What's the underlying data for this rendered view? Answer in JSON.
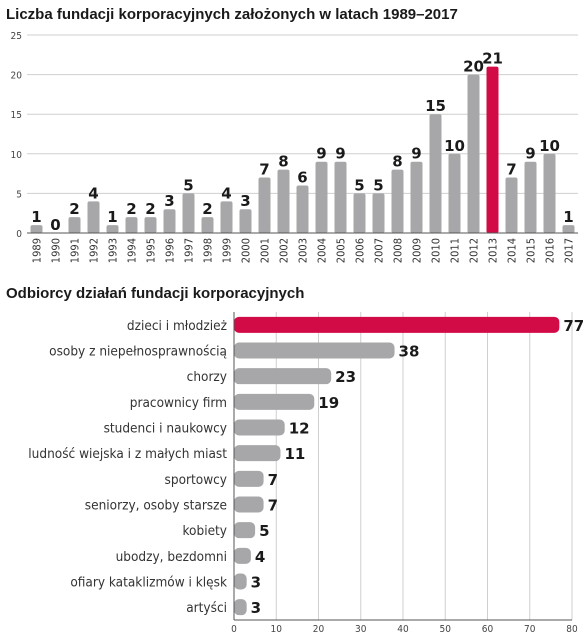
{
  "colors": {
    "bar": "#a7a7a9",
    "highlight": "#d20b47",
    "grid": "#cfcfcf",
    "axis": "#555555"
  },
  "chart_data": [
    {
      "type": "bar",
      "title": "Liczba fundacji korporacyjnych założonych w latach 1989–2017",
      "categories": [
        "1989",
        "1990",
        "1991",
        "1992",
        "1993",
        "1994",
        "1995",
        "1996",
        "1997",
        "1998",
        "1999",
        "2000",
        "2001",
        "2002",
        "2003",
        "2004",
        "2005",
        "2006",
        "2007",
        "2008",
        "2009",
        "2010",
        "2011",
        "2012",
        "2013",
        "2014",
        "2015",
        "2016",
        "2017"
      ],
      "values": [
        1,
        0,
        2,
        4,
        1,
        2,
        2,
        3,
        5,
        2,
        4,
        3,
        7,
        8,
        6,
        9,
        9,
        5,
        5,
        8,
        9,
        15,
        10,
        20,
        21,
        7,
        9,
        10,
        1
      ],
      "highlight_category": "2013",
      "ylim": [
        0,
        25
      ],
      "yticks": [
        0,
        5,
        10,
        15,
        20,
        25
      ],
      "grid": true,
      "orientation": "vertical"
    },
    {
      "type": "bar",
      "title": "Odbiorcy działań fundacji korporacyjnych",
      "categories": [
        "dzieci i młodzież",
        "osoby z niepełnosprawnością",
        "chorzy",
        "pracownicy firm",
        "studenci i naukowcy",
        "ludność wiejska i z małych miast",
        "sportowcy",
        "seniorzy, osoby starsze",
        "kobiety",
        "ubodzy, bezdomni",
        "ofiary kataklizmów i klęsk",
        "artyści"
      ],
      "values": [
        77,
        38,
        23,
        19,
        12,
        11,
        7,
        7,
        5,
        4,
        3,
        3
      ],
      "highlight_category": "dzieci i młodzież",
      "xlim": [
        0,
        80
      ],
      "xticks": [
        0,
        10,
        20,
        30,
        40,
        50,
        60,
        70,
        80
      ],
      "grid": true,
      "orientation": "horizontal"
    }
  ]
}
